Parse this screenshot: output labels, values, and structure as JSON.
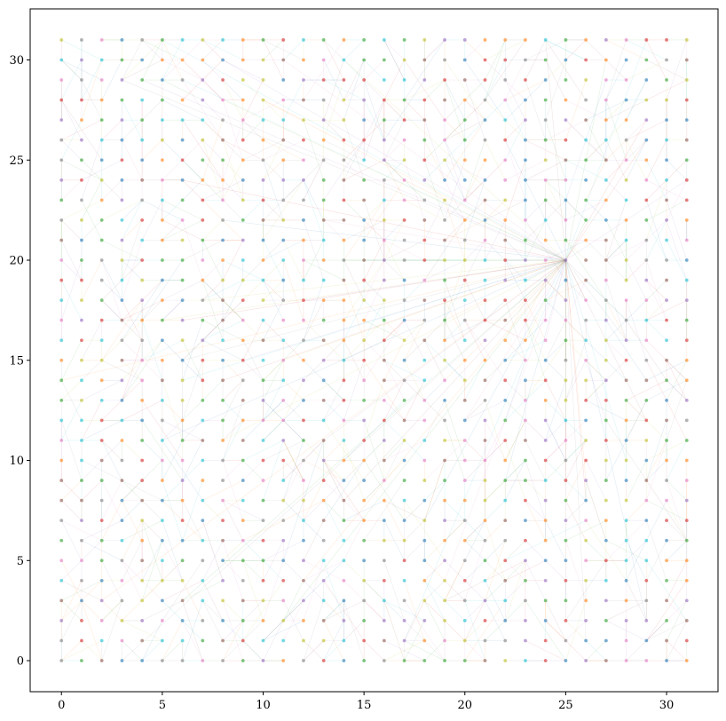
{
  "chart_data": {
    "type": "scatter",
    "title": "",
    "xlabel": "",
    "ylabel": "",
    "xlim": [
      -1.55,
      32.55
    ],
    "ylim": [
      -1.55,
      32.55
    ],
    "grid": false,
    "legend": "none",
    "grid_points": {
      "x_from": 0,
      "x_to": 31,
      "y_from": 0,
      "y_to": 31,
      "step": 1
    },
    "hub": {
      "x": 25,
      "y": 20
    },
    "x_ticks": [
      0,
      5,
      10,
      15,
      20,
      25,
      30
    ],
    "y_ticks": [
      0,
      5,
      10,
      15,
      20,
      25,
      30
    ],
    "x_tick_labels": [
      "0",
      "5",
      "10",
      "15",
      "20",
      "25",
      "30"
    ],
    "y_tick_labels": [
      "0",
      "5",
      "10",
      "15",
      "20",
      "25",
      "30"
    ],
    "colors": [
      "#1f77b4",
      "#ff7f0e",
      "#2ca02c",
      "#d62728",
      "#9467bd",
      "#8c564b",
      "#e377c2",
      "#7f7f7f",
      "#bcbd22",
      "#17becf"
    ],
    "point_alpha": 0.6,
    "edge_alpha": 0.15
  }
}
